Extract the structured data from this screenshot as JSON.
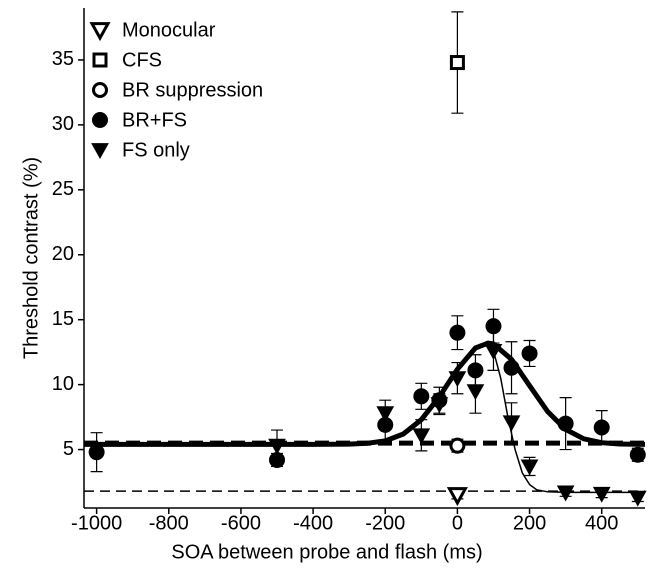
{
  "chart_data": {
    "type": "scatter",
    "xlabel": "SOA between probe and flash (ms)",
    "ylabel": "Threshold contrast (%)",
    "xlim": [
      -1035,
      520
    ],
    "xticks": [
      -1000,
      -800,
      -600,
      -400,
      -200,
      0,
      200,
      400
    ],
    "ylim": [
      0.5,
      39
    ],
    "yticks": [
      5,
      10,
      15,
      20,
      25,
      30,
      35
    ],
    "legend": "upper left",
    "series": [
      {
        "name": "Monocular",
        "marker": "open-triangle",
        "color": "#000000",
        "x": [
          0
        ],
        "values": [
          1.5
        ],
        "errors": [
          0.3
        ]
      },
      {
        "name": "CFS",
        "marker": "open-square",
        "color": "#000000",
        "x": [
          0
        ],
        "values": [
          34.8
        ],
        "errors": [
          3.9
        ]
      },
      {
        "name": "BR suppression",
        "marker": "open-circle",
        "color": "#000000",
        "x": [
          0
        ],
        "values": [
          5.3
        ],
        "errors": [
          0.5
        ]
      },
      {
        "name": "BR+FS",
        "marker": "filled-circle",
        "color": "#000000",
        "x": [
          -1000,
          -500,
          -200,
          -100,
          -50,
          0,
          50,
          100,
          150,
          200,
          300,
          400,
          500
        ],
        "values": [
          4.8,
          4.2,
          6.9,
          9.1,
          8.8,
          14.0,
          11.1,
          14.5,
          11.3,
          12.4,
          7.0,
          6.7,
          4.6
        ],
        "errors": [
          1.5,
          0.5,
          1.2,
          1.0,
          1.0,
          1.3,
          1.2,
          1.3,
          2.0,
          1.0,
          2.0,
          1.3,
          0.5
        ]
      },
      {
        "name": "FS only",
        "marker": "filled-triangle",
        "color": "#000000",
        "x": [
          -500,
          -200,
          -100,
          -50,
          0,
          50,
          100,
          150,
          200,
          300,
          400,
          500
        ],
        "values": [
          5.3,
          7.8,
          6.1,
          8.5,
          10.5,
          9.5,
          12.6,
          7.1,
          3.7,
          1.7,
          1.6,
          1.3
        ],
        "errors": [
          1.2,
          1.0,
          1.2,
          0.8,
          1.2,
          1.7,
          1.5,
          1.5,
          0.7,
          0.3,
          0.3,
          0.3
        ]
      }
    ],
    "fits": [
      {
        "style": "thick",
        "x": [
          -1035,
          -400,
          -300,
          -250,
          -200,
          -150,
          -100,
          -50,
          0,
          50,
          85,
          100,
          150,
          200,
          250,
          300,
          350,
          400,
          450,
          520
        ],
        "values": [
          5.4,
          5.4,
          5.42,
          5.48,
          5.67,
          6.2,
          7.3,
          9.07,
          11.19,
          12.82,
          13.2,
          13.13,
          11.95,
          9.92,
          7.93,
          6.55,
          5.83,
          5.53,
          5.43,
          5.4
        ]
      },
      {
        "style": "thin",
        "x": [
          60,
          80,
          100,
          120,
          140,
          160,
          180,
          200,
          220,
          250,
          300,
          520
        ],
        "values": [
          12.9,
          13.0,
          12.6,
          10.5,
          7.5,
          5.0,
          3.2,
          2.3,
          1.9,
          1.75,
          1.7,
          1.7
        ]
      }
    ],
    "reference_lines": [
      {
        "style": "thick",
        "value": 5.5
      },
      {
        "style": "thin",
        "value": 1.8
      }
    ]
  }
}
